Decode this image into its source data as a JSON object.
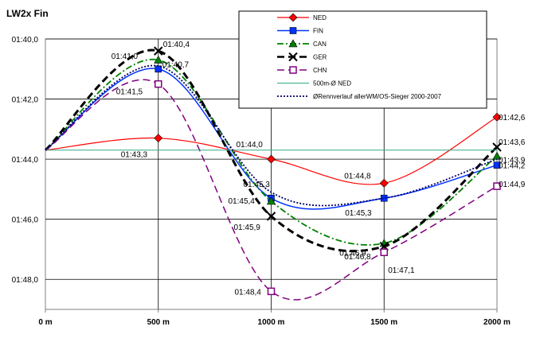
{
  "chart_data": {
    "type": "line",
    "title": "LW2x Fin",
    "xlabel": "",
    "ylabel": "",
    "x": [
      "0 m",
      "500 m",
      "1000 m",
      "1500 m",
      "2000 m"
    ],
    "xlim": [
      0,
      2000
    ],
    "ylim": [
      100,
      109
    ],
    "y_inverted": true,
    "grid": true,
    "legend_position": "top-right",
    "yticks": [
      "01:40,0",
      "01:42,0",
      "01:44,0",
      "01:46,0",
      "01:48,0"
    ],
    "series": [
      {
        "name": "NED",
        "color": "#ff0000",
        "marker": "diamond",
        "style": "solid",
        "width": 1.2,
        "values": [
          103.7,
          103.3,
          104.0,
          104.8,
          102.6
        ],
        "labels": [
          "",
          "01:43,3",
          "01:44,0",
          "01:44,8",
          "01:42,6"
        ]
      },
      {
        "name": "FIN",
        "color": "#0033ff",
        "marker": "square",
        "style": "solid",
        "width": 1.5,
        "values": [
          103.7,
          101.0,
          105.3,
          105.3,
          104.2
        ],
        "labels": [
          "",
          "01:41,0",
          "01:45,3",
          "01:45,3",
          "01:44,2"
        ]
      },
      {
        "name": "CAN",
        "color": "#008000",
        "marker": "triangle",
        "style": "dashdot",
        "width": 1.8,
        "values": [
          103.7,
          100.7,
          105.4,
          106.8,
          103.9
        ],
        "labels": [
          "",
          "01:40,7",
          "01:45,4",
          "01:46,8",
          "01:43,9"
        ]
      },
      {
        "name": "GER",
        "color": "#000000",
        "marker": "x",
        "style": "dash",
        "width": 3,
        "values": [
          103.7,
          100.4,
          105.9,
          106.9,
          103.6
        ],
        "labels": [
          "",
          "01:40,4",
          "01:45,9",
          "01:46,9",
          "01:43,6"
        ]
      },
      {
        "name": "CHN",
        "color": "#800080",
        "marker": "square-open",
        "style": "dash",
        "width": 1.5,
        "values": [
          103.7,
          101.5,
          108.4,
          107.1,
          104.9
        ],
        "labels": [
          "",
          "01:41,5",
          "01:48,4",
          "01:47,1",
          "01:44,9"
        ]
      },
      {
        "name": "500m-Ø NED",
        "color": "#33aa88",
        "marker": "none",
        "style": "solid",
        "width": 1,
        "values": [
          103.7,
          103.7,
          103.7,
          103.7,
          103.7
        ],
        "labels": [
          "",
          "",
          "",
          "",
          ""
        ]
      },
      {
        "name": "ØRennverlauf allerWM/OS-Sieger 2000-2007",
        "color": "#000066",
        "marker": "none",
        "style": "dot",
        "width": 1.8,
        "values": [
          103.7,
          100.9,
          105.1,
          105.3,
          104.0
        ],
        "labels": [
          "",
          "",
          "",
          "",
          ""
        ]
      }
    ]
  }
}
